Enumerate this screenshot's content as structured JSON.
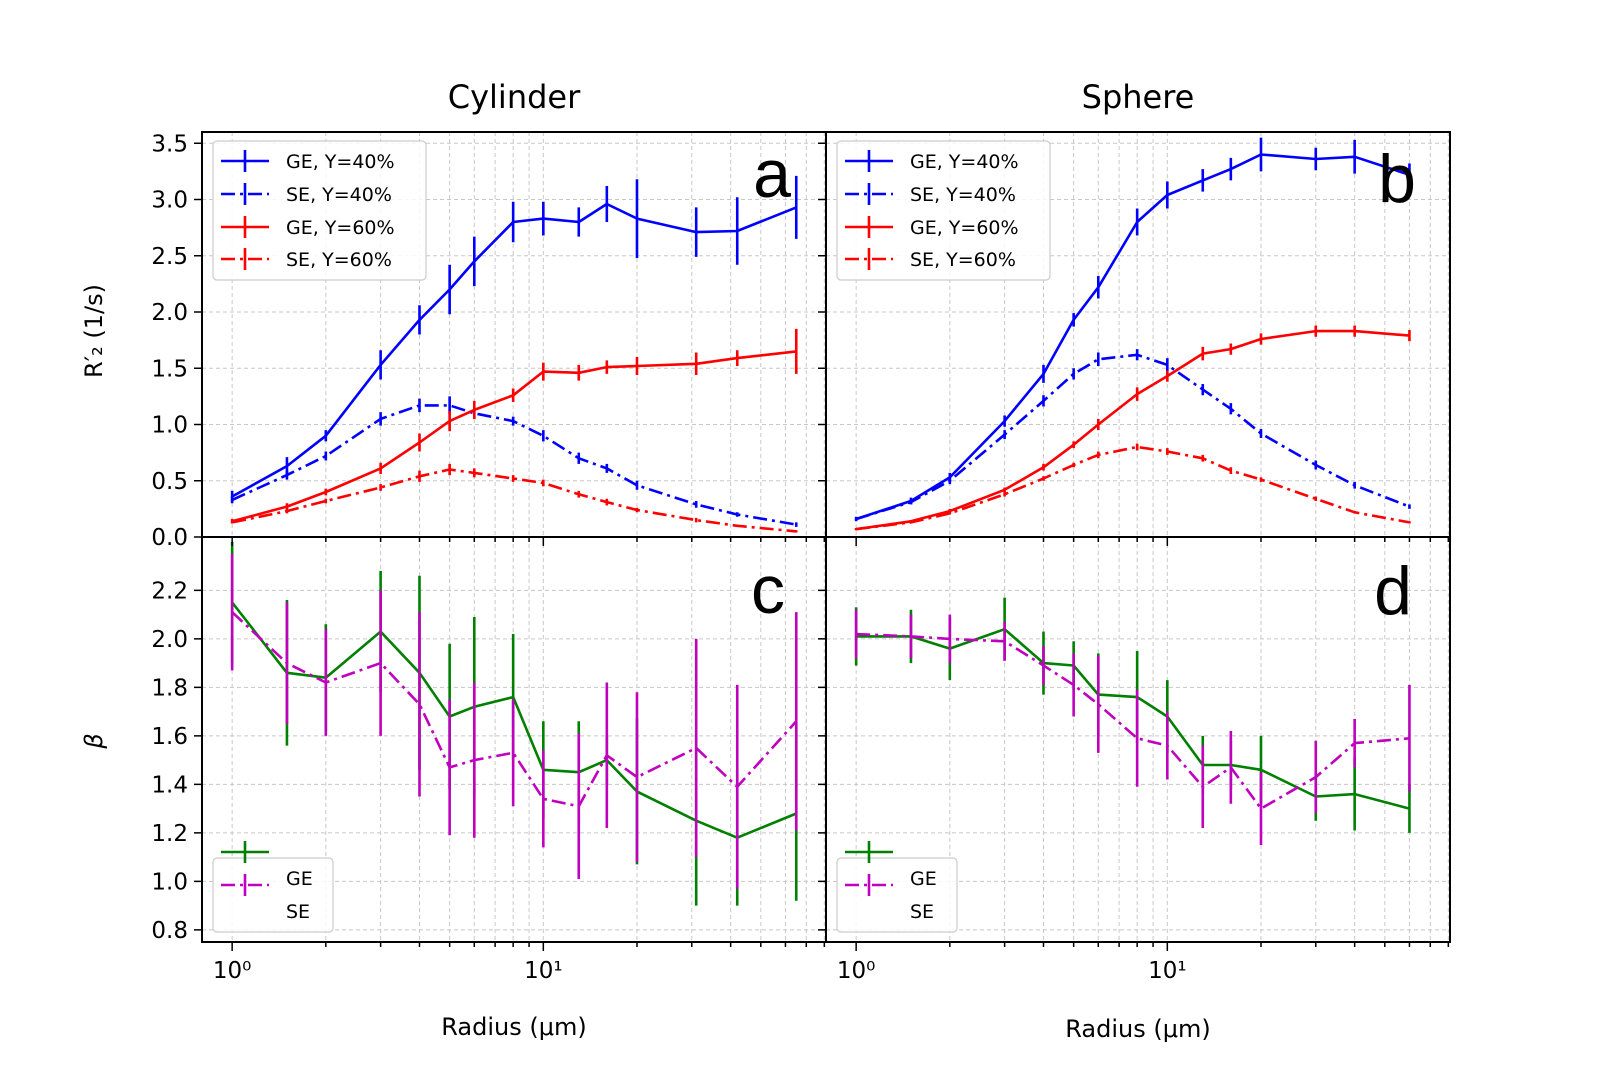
{
  "chart_data": [
    {
      "id": "a",
      "type": "line",
      "panel_label": "a",
      "title": "Cylinder",
      "xlabel": "",
      "ylabel": "R′₂ (1/s)",
      "xscale": "log",
      "xlim": [
        0.8,
        81
      ],
      "ylim": [
        0,
        3.6
      ],
      "yticks": [
        0.0,
        0.5,
        1.0,
        1.5,
        2.0,
        2.5,
        3.0,
        3.5
      ],
      "ytick_labels": [
        "0.0",
        "0.5",
        "1.0",
        "1.5",
        "2.0",
        "2.5",
        "3.0",
        "3.5"
      ],
      "legend_location": "upper-left",
      "series": [
        {
          "name": "GE, Y=40%",
          "color": "#0000ff",
          "dash": "solid",
          "x": [
            1,
            1.5,
            2,
            3,
            4,
            5,
            6,
            8,
            10,
            13,
            16,
            20,
            31,
            42,
            65
          ],
          "y": [
            0.36,
            0.63,
            0.9,
            1.53,
            1.93,
            2.2,
            2.45,
            2.8,
            2.83,
            2.8,
            2.96,
            2.83,
            2.71,
            2.72,
            2.93
          ],
          "err": [
            0.05,
            0.08,
            0.05,
            0.13,
            0.13,
            0.22,
            0.22,
            0.18,
            0.15,
            0.13,
            0.16,
            0.35,
            0.22,
            0.3,
            0.28
          ]
        },
        {
          "name": "SE, Y=40%",
          "color": "#0000ff",
          "dash": "dashdot",
          "x": [
            1,
            1.5,
            2,
            3,
            4,
            5,
            6,
            8,
            10,
            13,
            16,
            20,
            31,
            42,
            65
          ],
          "y": [
            0.33,
            0.55,
            0.72,
            1.05,
            1.17,
            1.17,
            1.1,
            1.03,
            0.9,
            0.7,
            0.61,
            0.46,
            0.29,
            0.2,
            0.11
          ],
          "err": [
            0.03,
            0.04,
            0.04,
            0.06,
            0.06,
            0.08,
            0.05,
            0.04,
            0.05,
            0.05,
            0.04,
            0.04,
            0.03,
            0.02,
            0.02
          ]
        },
        {
          "name": "GE, Y=60%",
          "color": "#ff0000",
          "dash": "solid",
          "x": [
            1,
            1.5,
            2,
            3,
            4,
            5,
            6,
            8,
            10,
            13,
            16,
            20,
            31,
            42,
            65
          ],
          "y": [
            0.14,
            0.27,
            0.4,
            0.61,
            0.84,
            1.03,
            1.13,
            1.26,
            1.47,
            1.46,
            1.51,
            1.52,
            1.54,
            1.59,
            1.65
          ],
          "err": [
            0.02,
            0.03,
            0.03,
            0.05,
            0.08,
            0.09,
            0.08,
            0.06,
            0.08,
            0.07,
            0.06,
            0.08,
            0.1,
            0.07,
            0.2
          ]
        },
        {
          "name": "SE, Y=60%",
          "color": "#ff0000",
          "dash": "dashdot",
          "x": [
            1,
            1.5,
            2,
            3,
            4,
            5,
            6,
            8,
            10,
            13,
            16,
            20,
            31,
            42,
            65
          ],
          "y": [
            0.13,
            0.23,
            0.32,
            0.44,
            0.54,
            0.6,
            0.57,
            0.52,
            0.48,
            0.38,
            0.31,
            0.24,
            0.15,
            0.1,
            0.05
          ],
          "err": [
            0.01,
            0.02,
            0.02,
            0.03,
            0.05,
            0.05,
            0.04,
            0.03,
            0.03,
            0.03,
            0.03,
            0.02,
            0.02,
            0.01,
            0.01
          ]
        }
      ]
    },
    {
      "id": "b",
      "type": "line",
      "panel_label": "b",
      "title": "Sphere",
      "xlabel": "",
      "ylabel": "",
      "xscale": "log",
      "xlim": [
        0.8,
        81
      ],
      "ylim": [
        0,
        3.6
      ],
      "yticks": [
        0.0,
        0.5,
        1.0,
        1.5,
        2.0,
        2.5,
        3.0,
        3.5
      ],
      "ytick_labels": [],
      "legend_location": "upper-left",
      "series": [
        {
          "name": "GE, Y=40%",
          "color": "#0000ff",
          "dash": "solid",
          "x": [
            1,
            1.5,
            2,
            3,
            4,
            5,
            6,
            8,
            10,
            13,
            16,
            20,
            30,
            40,
            60
          ],
          "y": [
            0.16,
            0.32,
            0.53,
            1.03,
            1.45,
            1.93,
            2.22,
            2.8,
            3.04,
            3.17,
            3.27,
            3.4,
            3.36,
            3.38,
            3.22
          ],
          "err": [
            0.02,
            0.03,
            0.04,
            0.05,
            0.08,
            0.06,
            0.1,
            0.12,
            0.12,
            0.1,
            0.1,
            0.15,
            0.1,
            0.15,
            0.1
          ]
        },
        {
          "name": "SE, Y=40%",
          "color": "#0000ff",
          "dash": "dashdot",
          "x": [
            1,
            1.5,
            2,
            3,
            4,
            5,
            6,
            8,
            10,
            13,
            16,
            20,
            30,
            40,
            60
          ],
          "y": [
            0.16,
            0.31,
            0.5,
            0.91,
            1.21,
            1.45,
            1.58,
            1.62,
            1.53,
            1.31,
            1.14,
            0.92,
            0.64,
            0.46,
            0.27
          ],
          "err": [
            0.01,
            0.02,
            0.03,
            0.04,
            0.05,
            0.05,
            0.06,
            0.05,
            0.06,
            0.05,
            0.05,
            0.04,
            0.04,
            0.03,
            0.02
          ]
        },
        {
          "name": "GE, Y=60%",
          "color": "#ff0000",
          "dash": "solid",
          "x": [
            1,
            1.5,
            2,
            3,
            4,
            5,
            6,
            8,
            10,
            13,
            16,
            20,
            30,
            40,
            60
          ],
          "y": [
            0.07,
            0.14,
            0.23,
            0.42,
            0.62,
            0.82,
            1.0,
            1.27,
            1.43,
            1.63,
            1.67,
            1.76,
            1.83,
            1.83,
            1.79
          ],
          "err": [
            0.01,
            0.01,
            0.02,
            0.02,
            0.03,
            0.03,
            0.05,
            0.06,
            0.05,
            0.06,
            0.05,
            0.05,
            0.05,
            0.05,
            0.05
          ]
        },
        {
          "name": "SE, Y=60%",
          "color": "#ff0000",
          "dash": "dashdot",
          "x": [
            1,
            1.5,
            2,
            3,
            4,
            5,
            6,
            8,
            10,
            13,
            16,
            20,
            30,
            40,
            60
          ],
          "y": [
            0.07,
            0.13,
            0.21,
            0.38,
            0.52,
            0.64,
            0.73,
            0.8,
            0.76,
            0.7,
            0.59,
            0.51,
            0.34,
            0.22,
            0.13
          ],
          "err": [
            0.01,
            0.01,
            0.01,
            0.02,
            0.02,
            0.02,
            0.03,
            0.03,
            0.03,
            0.03,
            0.03,
            0.02,
            0.02,
            0.01,
            0.01
          ]
        }
      ]
    },
    {
      "id": "c",
      "type": "line",
      "panel_label": "c",
      "title": "",
      "xlabel": "Radius (μm)",
      "ylabel": "β",
      "xscale": "log",
      "xlim": [
        0.8,
        81
      ],
      "ylim": [
        0.75,
        2.42
      ],
      "yticks": [
        0.8,
        1.0,
        1.2,
        1.4,
        1.6,
        1.8,
        2.0,
        2.2
      ],
      "ytick_labels": [
        "0.8",
        "1.0",
        "1.2",
        "1.4",
        "1.6",
        "1.8",
        "2.0",
        "2.2"
      ],
      "xticks": [
        1,
        10
      ],
      "xtick_labels": [
        "10⁰",
        "10¹"
      ],
      "legend_location": "lower-left",
      "series": [
        {
          "name": "GE",
          "color": "#008000",
          "dash": "solid",
          "x": [
            1,
            1.5,
            2,
            3,
            4,
            5,
            6,
            8,
            10,
            13,
            16,
            20,
            31,
            42,
            65
          ],
          "y": [
            2.15,
            1.86,
            1.84,
            2.03,
            1.86,
            1.68,
            1.72,
            1.76,
            1.46,
            1.45,
            1.5,
            1.37,
            1.25,
            1.18,
            1.28
          ],
          "err": [
            0.25,
            0.3,
            0.22,
            0.25,
            0.4,
            0.3,
            0.37,
            0.26,
            0.2,
            0.21,
            0.1,
            0.3,
            0.35,
            0.28,
            0.36
          ]
        },
        {
          "name": "SE",
          "color": "#bf00bf",
          "dash": "dashdot",
          "x": [
            1,
            1.5,
            2,
            3,
            4,
            5,
            6,
            8,
            10,
            13,
            16,
            20,
            31,
            42,
            65
          ],
          "y": [
            2.11,
            1.9,
            1.82,
            1.9,
            1.73,
            1.47,
            1.5,
            1.53,
            1.34,
            1.31,
            1.52,
            1.43,
            1.55,
            1.39,
            1.66
          ],
          "err": [
            0.24,
            0.25,
            0.22,
            0.3,
            0.38,
            0.28,
            0.32,
            0.22,
            0.2,
            0.3,
            0.3,
            0.35,
            0.45,
            0.42,
            0.45
          ]
        }
      ]
    },
    {
      "id": "d",
      "type": "line",
      "panel_label": "d",
      "title": "",
      "xlabel": "Radius (μm)",
      "ylabel": "",
      "xscale": "log",
      "xlim": [
        0.8,
        81
      ],
      "ylim": [
        0.75,
        2.42
      ],
      "yticks": [
        0.8,
        1.0,
        1.2,
        1.4,
        1.6,
        1.8,
        2.0,
        2.2
      ],
      "ytick_labels": [],
      "xticks": [
        1,
        10
      ],
      "xtick_labels": [
        "10⁰",
        "10¹"
      ],
      "legend_location": "lower-left",
      "series": [
        {
          "name": "GE",
          "color": "#008000",
          "dash": "solid",
          "x": [
            1,
            1.5,
            2,
            3,
            4,
            5,
            6,
            8,
            10,
            13,
            16,
            20,
            30,
            40,
            60
          ],
          "y": [
            2.01,
            2.01,
            1.96,
            2.04,
            1.9,
            1.89,
            1.77,
            1.76,
            1.68,
            1.48,
            1.48,
            1.46,
            1.35,
            1.36,
            1.3
          ],
          "err": [
            0.12,
            0.11,
            0.13,
            0.13,
            0.13,
            0.1,
            0.17,
            0.19,
            0.15,
            0.12,
            0.1,
            0.14,
            0.1,
            0.15,
            0.1
          ]
        },
        {
          "name": "SE",
          "color": "#bf00bf",
          "dash": "dashdot",
          "x": [
            1,
            1.5,
            2,
            3,
            4,
            5,
            6,
            8,
            10,
            13,
            16,
            20,
            30,
            40,
            60
          ],
          "y": [
            2.02,
            2.01,
            2.0,
            1.99,
            1.89,
            1.81,
            1.73,
            1.59,
            1.56,
            1.39,
            1.47,
            1.3,
            1.43,
            1.57,
            1.59
          ],
          "err": [
            0.1,
            0.09,
            0.1,
            0.08,
            0.08,
            0.13,
            0.2,
            0.2,
            0.14,
            0.17,
            0.15,
            0.15,
            0.15,
            0.1,
            0.22
          ]
        }
      ]
    }
  ]
}
